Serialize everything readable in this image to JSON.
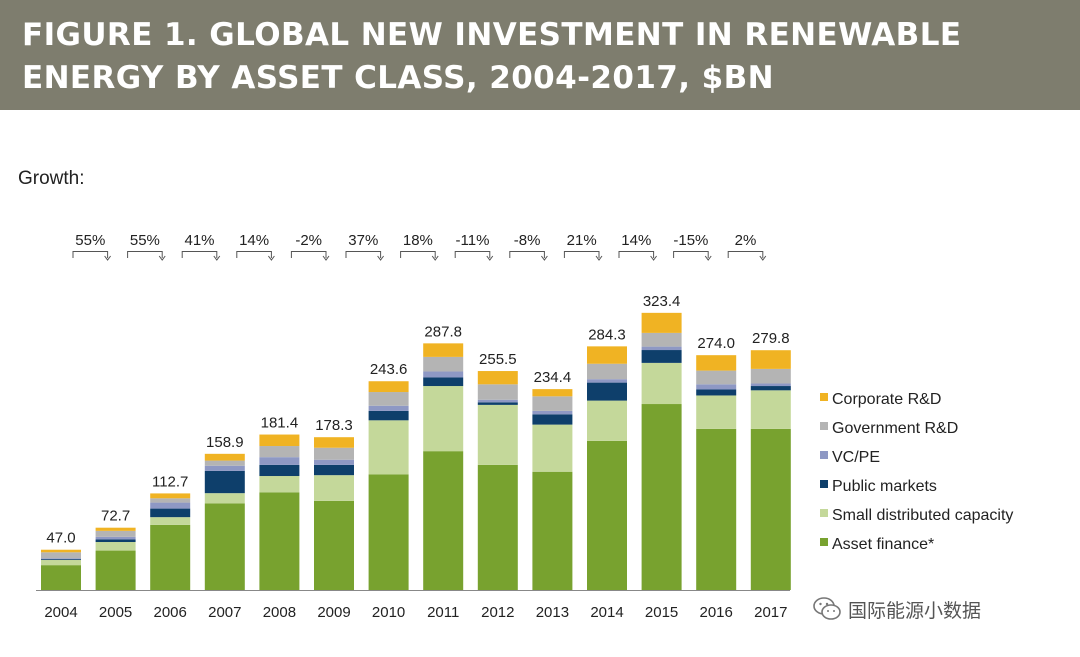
{
  "title": "FIGURE 1. GLOBAL NEW INVESTMENT IN RENEWABLE ENERGY BY ASSET CLASS, 2004-2017, $BN",
  "growth_label": "Growth:",
  "watermark": "国际能源小数据",
  "colors": {
    "banner": "#7e7d6e",
    "asset_finance": "#78a22f",
    "small_distributed": "#c4d89a",
    "public_markets": "#0e3f6b",
    "vc_pe": "#8e98c4",
    "government_rd": "#b4b4b4",
    "corporate_rd": "#f0b323"
  },
  "chart_data": {
    "type": "bar",
    "stacked": true,
    "title": "Global new investment in renewable energy by asset class, 2004-2017, $BN",
    "categories": [
      "2004",
      "2005",
      "2006",
      "2007",
      "2008",
      "2009",
      "2010",
      "2011",
      "2012",
      "2013",
      "2014",
      "2015",
      "2016",
      "2017"
    ],
    "totals": [
      "47.0",
      "72.7",
      "112.7",
      "158.9",
      "181.4",
      "178.3",
      "243.6",
      "287.8",
      "255.5",
      "234.4",
      "284.3",
      "323.4",
      "274.0",
      "279.8"
    ],
    "growth": [
      "55%",
      "55%",
      "41%",
      "14%",
      "-2%",
      "37%",
      "18%",
      "-11%",
      "-8%",
      "21%",
      "14%",
      "-15%",
      "2%"
    ],
    "series": [
      {
        "name": "Asset finance*",
        "color": "#78a22f",
        "values": [
          29,
          46,
          76,
          101,
          114,
          104,
          135,
          162,
          146,
          138,
          174,
          217,
          188,
          188
        ]
      },
      {
        "name": "Small distributed capacity",
        "color": "#c4d89a",
        "values": [
          6,
          10,
          9,
          12,
          19,
          30,
          63,
          76,
          70,
          55,
          47,
          48,
          39,
          45
        ]
      },
      {
        "name": "Public markets",
        "color": "#0e3f6b",
        "values": [
          1,
          3,
          10,
          26,
          13,
          12,
          11,
          10,
          3,
          12,
          21,
          15,
          7,
          5
        ]
      },
      {
        "name": "VC/PE",
        "color": "#8e98c4",
        "values": [
          1,
          3,
          7,
          6,
          9,
          6,
          6,
          7,
          3,
          4,
          4,
          4,
          6,
          3
        ]
      },
      {
        "name": "Government R&D",
        "color": "#b4b4b4",
        "values": [
          7,
          7,
          5,
          6,
          13,
          14,
          16,
          17,
          18,
          17,
          18,
          16,
          16,
          17
        ]
      },
      {
        "name": "Corporate R&D",
        "color": "#f0b323",
        "values": [
          3,
          3.7,
          5.7,
          7.9,
          13.4,
          12.3,
          12.6,
          15.8,
          15.5,
          8.4,
          20.3,
          23.4,
          18,
          21.8
        ]
      }
    ],
    "legend_order": [
      "Corporate R&D",
      "Government R&D",
      "VC/PE",
      "Public markets",
      "Small distributed capacity",
      "Asset finance*"
    ],
    "xlabel": "",
    "ylabel": "$BN",
    "ylim": [
      0,
      340
    ],
    "legend_position": "right",
    "grid": false
  }
}
